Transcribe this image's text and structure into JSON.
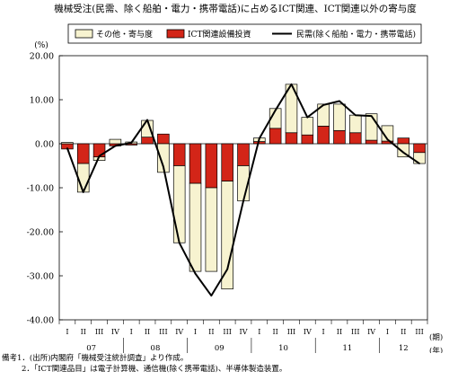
{
  "chart_data": {
    "type": "bar",
    "title": "機械受注(民需、除く船舶・電力・携帯電話)に占めるICT関連、ICT関連以外の寄与度",
    "unit_label": "(%)",
    "xunit_label_1": "(期)",
    "xunit_label_2": "(年)",
    "ylim": [
      -40,
      20
    ],
    "yticks": [
      "20.00",
      "10.00",
      "0.00",
      "-10.00",
      "-20.00",
      "-30.00",
      "-40.00"
    ],
    "grid": false,
    "legend_position": "top",
    "quarters": [
      "I",
      "II",
      "III",
      "IV",
      "I",
      "II",
      "III",
      "IV",
      "I",
      "II",
      "III",
      "IV",
      "I",
      "II",
      "III",
      "IV",
      "I",
      "II",
      "III",
      "IV",
      "I",
      "II",
      "III"
    ],
    "years": [
      {
        "label": "07",
        "start": 0,
        "end": 3
      },
      {
        "label": "08",
        "start": 4,
        "end": 7
      },
      {
        "label": "09",
        "start": 8,
        "end": 11
      },
      {
        "label": "10",
        "start": 12,
        "end": 15
      },
      {
        "label": "11",
        "start": 16,
        "end": 19
      },
      {
        "label": "12",
        "start": 20,
        "end": 22
      }
    ],
    "series": [
      {
        "name": "その他・寄与度",
        "kind": "bar",
        "color": "#f7f3d0",
        "values": [
          0.3,
          -6.5,
          -0.8,
          1.0,
          0.4,
          3.8,
          -6.5,
          -17.5,
          -20.0,
          -19.0,
          -24.5,
          -8.0,
          0.8,
          4.5,
          11.0,
          4.0,
          5.0,
          6.0,
          4.0,
          6.0,
          3.5,
          -3.0,
          -2.5
        ]
      },
      {
        "name": "ICT関連設備投資",
        "kind": "bar",
        "color": "#d32518",
        "values": [
          -1.2,
          -4.5,
          -3.0,
          -0.5,
          -0.3,
          1.5,
          2.2,
          -5.0,
          -9.0,
          -10.0,
          -8.5,
          -5.0,
          0.5,
          3.5,
          2.5,
          2.0,
          4.0,
          3.0,
          2.5,
          0.8,
          0.6,
          1.3,
          -2.0
        ]
      },
      {
        "name": "民需(除く船舶・電力・携帯電話)",
        "kind": "line",
        "color": "#000000",
        "values": [
          -1.0,
          -11.0,
          -2.8,
          -0.5,
          0.2,
          5.4,
          -5.2,
          -22.5,
          -29.5,
          -34.5,
          -28.5,
          -13.0,
          1.2,
          7.6,
          13.5,
          6.0,
          8.8,
          9.7,
          6.5,
          6.3,
          1.0,
          -2.0,
          -4.5
        ]
      }
    ]
  },
  "notes": [
    "備考1．(出所)内閣府「機械受注統計調査」より作成。",
    "2．「ICT関連品目」は電子計算機、通信機(除く携帯電話)、半導体製造装置。"
  ]
}
